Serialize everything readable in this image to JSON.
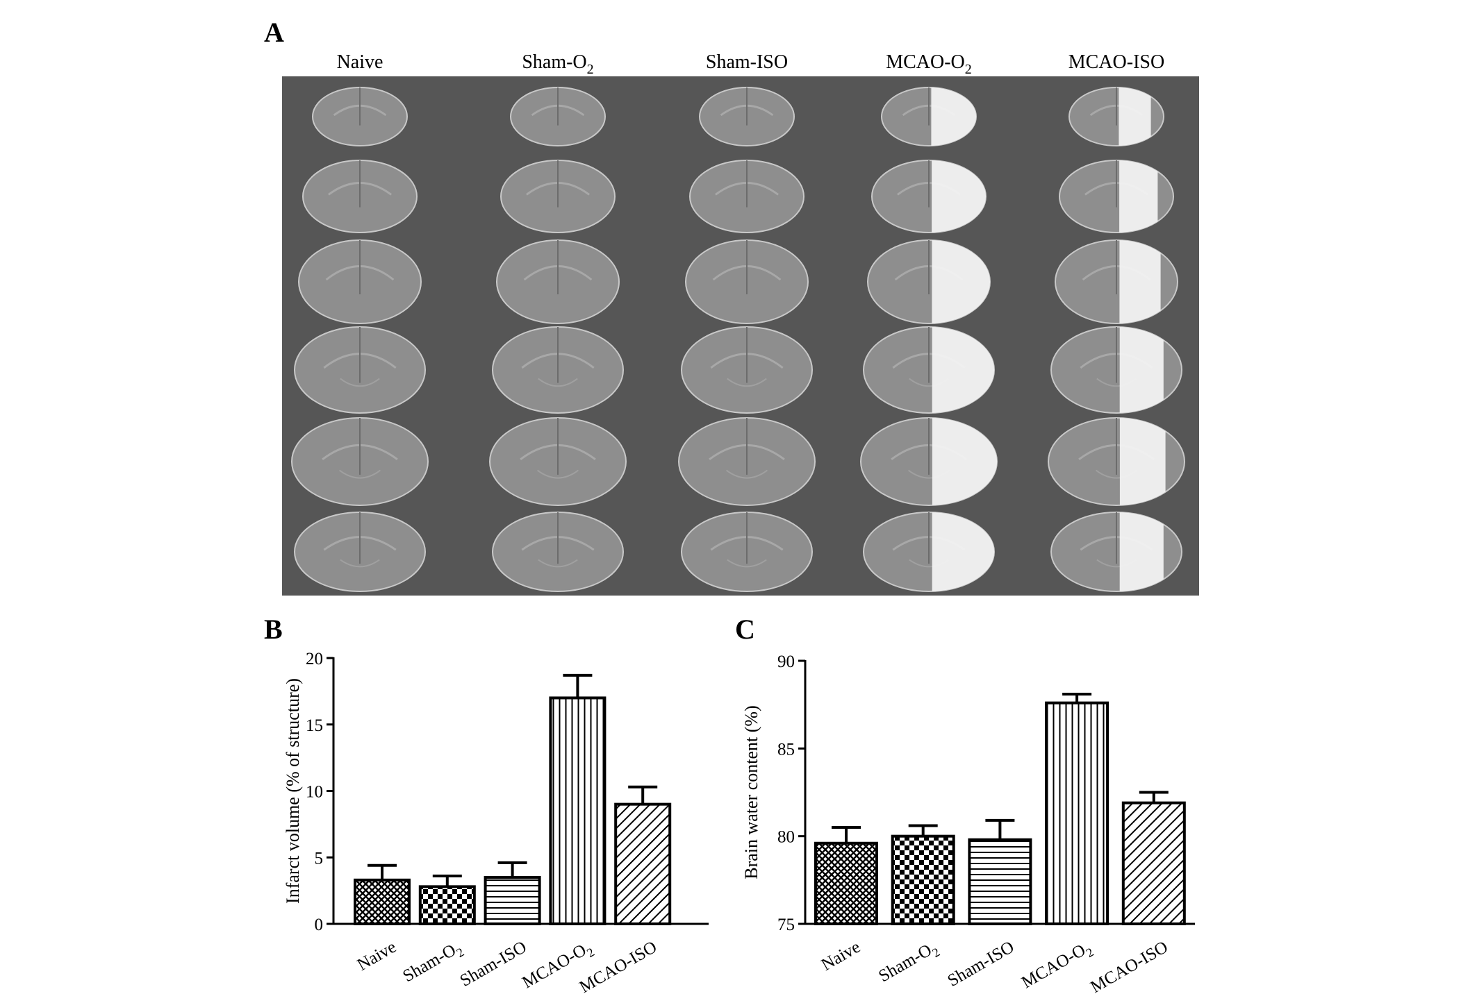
{
  "figure": {
    "panel_a": {
      "letter": "A",
      "columns": [
        {
          "label": "Naive",
          "lesion": 0
        },
        {
          "label": "Sham-O",
          "sub": "2",
          "lesion": 0
        },
        {
          "label": "Sham-ISO",
          "lesion": 0
        },
        {
          "label": "MCAO-O",
          "sub": "2",
          "lesion": 1
        },
        {
          "label": "MCAO-ISO",
          "lesion": 0.65
        }
      ],
      "sections_per_column": 6,
      "colors": {
        "background": "#565656",
        "tissue": "#8e8e8e",
        "lesion": "#f2f2f2"
      }
    },
    "bar_colors": {
      "stroke": "#000000",
      "fill": "#ffffff"
    }
  },
  "chart_data": [
    {
      "type": "bar",
      "panel": "B",
      "title": "",
      "xlabel": "",
      "ylabel": "Infarct volume (% of structure)",
      "ylim": [
        0,
        20
      ],
      "yticks": [
        0,
        5,
        10,
        15,
        20
      ],
      "categories": [
        "Naive",
        "Sham-O2",
        "Sham-ISO",
        "MCAO-O2",
        "MCAO-ISO"
      ],
      "category_labels": [
        {
          "text": "Naive"
        },
        {
          "text": "Sham-O",
          "sub": "2"
        },
        {
          "text": "Sham-ISO"
        },
        {
          "text": "MCAO-O",
          "sub": "2"
        },
        {
          "text": "MCAO-ISO"
        }
      ],
      "values": [
        3.3,
        2.8,
        3.5,
        17.0,
        9.0
      ],
      "errors": [
        1.1,
        0.8,
        1.1,
        1.7,
        1.3
      ],
      "patterns": [
        "crosshatch",
        "checker",
        "horizontal",
        "vertical",
        "diagonal"
      ]
    },
    {
      "type": "bar",
      "panel": "C",
      "title": "",
      "xlabel": "",
      "ylabel": "Brain water content (%)",
      "ylim": [
        75,
        90
      ],
      "yticks": [
        75,
        80,
        85,
        90
      ],
      "categories": [
        "Naive",
        "Sham-O2",
        "Sham-ISO",
        "MCAO-O2",
        "MCAO-ISO"
      ],
      "category_labels": [
        {
          "text": "Naive"
        },
        {
          "text": "Sham-O",
          "sub": "2"
        },
        {
          "text": "Sham-ISO"
        },
        {
          "text": "MCAO-O",
          "sub": "2"
        },
        {
          "text": "MCAO-ISO"
        }
      ],
      "values": [
        79.6,
        80.0,
        79.8,
        87.6,
        81.9
      ],
      "errors": [
        0.9,
        0.6,
        1.1,
        0.5,
        0.6
      ],
      "patterns": [
        "crosshatch",
        "checker",
        "horizontal",
        "vertical",
        "diagonal"
      ]
    }
  ]
}
